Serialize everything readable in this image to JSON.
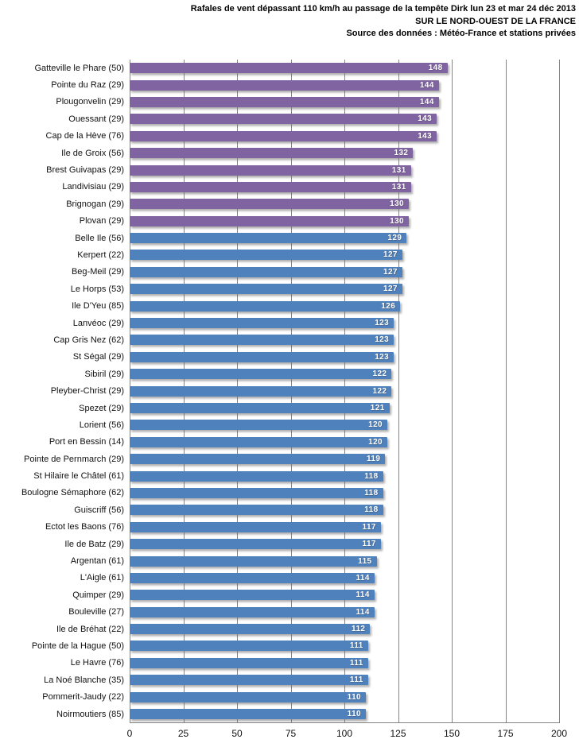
{
  "title": {
    "line1": "Rafales de vent dépassant 110 km/h au passage de la tempête Dirk lun 23 et mar 24 déc 2013",
    "line2": "SUR LE NORD-OUEST DE LA FRANCE",
    "line3": "Source des données : Météo-France et stations privées"
  },
  "chart_data": {
    "type": "bar",
    "orientation": "horizontal",
    "title": "Rafales de vent dépassant 110 km/h au passage de la tempête Dirk lun 23 et mar 24 déc 2013 SUR LE NORD-OUEST DE LA FRANCE",
    "subtitle": "Source des données : Météo-France et stations privées",
    "xlabel": "",
    "ylabel": "",
    "xlim": [
      0,
      200
    ],
    "x_ticks": [
      0,
      25,
      50,
      75,
      100,
      125,
      150,
      175,
      200
    ],
    "grid": true,
    "legend": false,
    "value_labels": "inside-end",
    "colors": {
      "highlight": "#8064A2",
      "default": "#4F81BD",
      "highlight_first_n": 10,
      "gridline": "#848484"
    },
    "categories": [
      "Gatteville le Phare (50)",
      "Pointe du Raz (29)",
      "Plougonvelin (29)",
      "Ouessant (29)",
      "Cap de la Hève (76)",
      "Ile de Groix (56)",
      "Brest Guivapas (29)",
      "Landivisiau (29)",
      "Brignogan (29)",
      "Plovan (29)",
      "Belle Ile (56)",
      "Kerpert (22)",
      "Beg-Meil (29)",
      "Le Horps (53)",
      "Ile D'Yeu (85)",
      "Lanvéoc (29)",
      "Cap Gris Nez (62)",
      "St Ségal (29)",
      "Sibiril (29)",
      "Pleyber-Christ (29)",
      "Spezet (29)",
      "Lorient (56)",
      "Port en Bessin (14)",
      "Pointe de Pernmarch (29)",
      "St Hilaire le Châtel (61)",
      "Boulogne Sémaphore (62)",
      "Guiscriff (56)",
      "Ectot les Baons (76)",
      "Ile de Batz (29)",
      "Argentan (61)",
      "L'Aigle (61)",
      "Quimper (29)",
      "Bouleville (27)",
      "Ile de Bréhat (22)",
      "Pointe de la Hague (50)",
      "Le Havre (76)",
      "La Noé Blanche (35)",
      "Pommerit-Jaudy (22)",
      "Noirmoutiers (85)"
    ],
    "values": [
      148,
      144,
      144,
      143,
      143,
      132,
      131,
      131,
      130,
      130,
      129,
      127,
      127,
      127,
      126,
      123,
      123,
      123,
      122,
      122,
      121,
      120,
      120,
      119,
      118,
      118,
      118,
      117,
      117,
      115,
      114,
      114,
      114,
      112,
      111,
      111,
      111,
      110,
      110
    ]
  }
}
